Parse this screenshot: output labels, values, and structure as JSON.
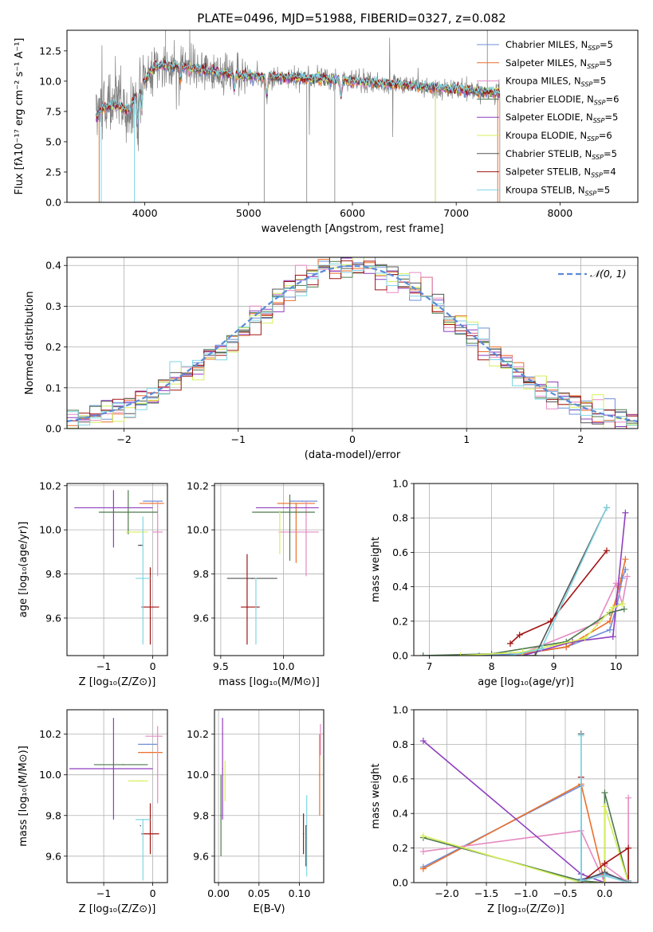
{
  "colors": {
    "chabrier_miles": "#6f8fd8",
    "salpeter_miles": "#ec6f2a",
    "kroupa_miles": "#e58ac1",
    "chabrier_elodie": "#4d7a4d",
    "salpeter_elodie": "#8f3fbf",
    "kroupa_elodie": "#d7ef5a",
    "chabrier_stelib": "#555555",
    "salpeter_stelib": "#a31414",
    "kroupa_stelib": "#7fd6e3",
    "observed": "#7f7f7f",
    "gaussian": "#5b8ad8"
  },
  "chart_data": [
    {
      "id": "spectrum",
      "type": "line",
      "title": "PLATE=0496, MJD=51988, FIBERID=0327, z=0.082",
      "xlabel": "wavelength [Angstrom, rest frame]",
      "ylabel": "Flux [fλ10⁻¹⁷ erg cm⁻² s⁻¹ A⁻¹]",
      "xlim": [
        3250,
        8750
      ],
      "ylim": [
        0,
        14.2
      ],
      "xticks": [
        4000,
        5000,
        6000,
        7000,
        8000
      ],
      "yticks": [
        0.0,
        2.5,
        5.0,
        7.5,
        10.0,
        12.5
      ],
      "grid": false,
      "legend_position": "top-right",
      "observed_range": [
        3530,
        7420
      ],
      "continuum_anchors": {
        "x": [
          3530,
          3600,
          3700,
          3850,
          3950,
          4100,
          4300,
          4500,
          4800,
          5000,
          5300,
          5600,
          6000,
          6300,
          6600,
          7000,
          7200,
          7420
        ],
        "y": [
          7.0,
          7.8,
          8.0,
          7.6,
          9.6,
          11.2,
          11.3,
          11.0,
          10.6,
          10.4,
          10.3,
          10.2,
          10.0,
          9.8,
          9.6,
          9.3,
          9.2,
          9.0
        ]
      },
      "absorption_lines": [
        {
          "x": 3933,
          "depth": 2.8
        },
        {
          "x": 3968,
          "depth": 2.2
        },
        {
          "x": 4340,
          "depth": 1.0
        },
        {
          "x": 4861,
          "depth": 1.2
        },
        {
          "x": 5175,
          "depth": 1.5
        },
        {
          "x": 5890,
          "depth": 1.2
        }
      ],
      "legend": [
        {
          "label": "Chabrier MILES, N",
          "sub": "SSP",
          "tail": "=5",
          "color": "chabrier_miles"
        },
        {
          "label": "Salpeter MILES, N",
          "sub": "SSP",
          "tail": "=5",
          "color": "salpeter_miles"
        },
        {
          "label": "Kroupa MILES, N",
          "sub": "SSP",
          "tail": "=5",
          "color": "kroupa_miles"
        },
        {
          "label": "Chabrier ELODIE, N",
          "sub": "SSP",
          "tail": "=6",
          "color": "chabrier_elodie"
        },
        {
          "label": "Salpeter ELODIE, N",
          "sub": "SSP",
          "tail": "=5",
          "color": "salpeter_elodie"
        },
        {
          "label": "Kroupa ELODIE, N",
          "sub": "SSP",
          "tail": "=6",
          "color": "kroupa_elodie"
        },
        {
          "label": "Chabrier STELIB, N",
          "sub": "SSP",
          "tail": "=5",
          "color": "chabrier_stelib"
        },
        {
          "label": "Salpeter STELIB, N",
          "sub": "SSP",
          "tail": "=4",
          "color": "salpeter_stelib"
        },
        {
          "label": "Kroupa STELIB, N",
          "sub": "SSP",
          "tail": "=5",
          "color": "kroupa_stelib"
        }
      ]
    },
    {
      "id": "residuals",
      "type": "line",
      "xlabel": "(data-model)/error",
      "ylabel": "Normed distribution",
      "xlim": [
        -2.5,
        2.5
      ],
      "ylim": [
        0,
        0.42
      ],
      "xticks": [
        -2,
        -1,
        0,
        1,
        2
      ],
      "yticks": [
        0.0,
        0.1,
        0.2,
        0.3,
        0.4
      ],
      "grid": true,
      "bin_width": 0.1,
      "legend": [
        {
          "label": "𝒩(0, 1)",
          "color": "gaussian",
          "style": "dashed"
        }
      ],
      "legend_position": "top-right"
    },
    {
      "id": "z-age",
      "type": "scatter",
      "xlabel": "Z [log₁₀(Z/Z⊙)]",
      "ylabel": "age  [log₁₀(age/yr)]",
      "xlim": [
        -1.75,
        0.3
      ],
      "ylim": [
        9.43,
        10.21
      ],
      "xticks": [
        -1,
        0
      ],
      "yticks": [
        9.6,
        9.8,
        10.0,
        10.2
      ],
      "grid": true,
      "points": [
        {
          "series": "chabrier_miles",
          "x": 0.0,
          "xerr": [
            0.2,
            0.2
          ],
          "y": 10.13,
          "yerr": [
            0.0,
            0.0
          ]
        },
        {
          "series": "salpeter_miles",
          "x": -0.02,
          "xerr": [
            0.25,
            0.25
          ],
          "y": 10.12,
          "yerr": [
            0.0,
            0.0
          ]
        },
        {
          "series": "kroupa_miles",
          "x": 0.1,
          "xerr": [
            0.1,
            0.1
          ],
          "y": 9.99,
          "yerr": [
            0.2,
            0.14
          ]
        },
        {
          "series": "chabrier_elodie",
          "x": -0.5,
          "xerr": [
            0.6,
            0.6
          ],
          "y": 10.08,
          "yerr": [
            0.1,
            0.1
          ]
        },
        {
          "series": "salpeter_elodie",
          "x": -0.8,
          "xerr": [
            0.8,
            0.8
          ],
          "y": 10.1,
          "yerr": [
            0.18,
            0.08
          ]
        },
        {
          "series": "kroupa_elodie",
          "x": -0.3,
          "xerr": [
            0.25,
            0.2
          ],
          "y": 9.99,
          "yerr": [
            0.0,
            0.0
          ]
        },
        {
          "series": "chabrier_stelib",
          "x": -0.25,
          "xerr": [
            0.05,
            0.05
          ],
          "y": 9.93,
          "yerr": [
            0.0,
            0.0
          ]
        },
        {
          "series": "salpeter_stelib",
          "x": -0.05,
          "xerr": [
            0.18,
            0.18
          ],
          "y": 9.65,
          "yerr": [
            0.17,
            0.18
          ]
        },
        {
          "series": "kroupa_stelib",
          "x": -0.2,
          "xerr": [
            0.15,
            0.15
          ],
          "y": 9.78,
          "yerr": [
            0.3,
            0.28
          ]
        }
      ]
    },
    {
      "id": "mass-age",
      "type": "scatter",
      "xlabel": "mass [log₁₀(M/M⊙)]",
      "ylabel": "",
      "xlim": [
        9.45,
        10.32
      ],
      "ylim": [
        9.43,
        10.21
      ],
      "xticks": [
        9.5,
        10.0
      ],
      "yticks": [
        9.6,
        9.8,
        10.0,
        10.2
      ],
      "grid": true,
      "points": [
        {
          "series": "chabrier_miles",
          "x": 10.15,
          "xerr": [
            0.1,
            0.12
          ],
          "y": 10.13,
          "yerr": [
            0.0,
            0.0
          ]
        },
        {
          "series": "salpeter_miles",
          "x": 10.1,
          "xerr": [
            0.15,
            0.15
          ],
          "y": 10.12,
          "yerr": [
            0.27,
            0.0
          ]
        },
        {
          "series": "kroupa_miles",
          "x": 10.18,
          "xerr": [
            0.22,
            0.1
          ],
          "y": 9.99,
          "yerr": [
            0.2,
            0.14
          ]
        },
        {
          "series": "chabrier_elodie",
          "x": 10.05,
          "xerr": [
            0.3,
            0.2
          ],
          "y": 10.08,
          "yerr": [
            0.22,
            0.08
          ]
        },
        {
          "series": "salpeter_elodie",
          "x": 10.03,
          "xerr": [
            0.25,
            0.25
          ],
          "y": 10.1,
          "yerr": [
            0.0,
            0.0
          ]
        },
        {
          "series": "kroupa_elodie",
          "x": 9.97,
          "xerr": [
            0.0,
            0.0
          ],
          "y": 9.99,
          "yerr": [
            0.1,
            0.1
          ]
        },
        {
          "series": "chabrier_stelib",
          "x": 9.75,
          "xerr": [
            0.2,
            0.2
          ],
          "y": 9.78,
          "yerr": [
            0.0,
            0.0
          ]
        },
        {
          "series": "salpeter_stelib",
          "x": 9.71,
          "xerr": [
            0.05,
            0.1
          ],
          "y": 9.65,
          "yerr": [
            0.17,
            0.24
          ]
        },
        {
          "series": "kroupa_stelib",
          "x": 9.78,
          "xerr": [
            0.0,
            0.0
          ],
          "y": 9.78,
          "yerr": [
            0.3,
            0.0
          ]
        }
      ]
    },
    {
      "id": "age-weight",
      "type": "line",
      "xlabel": "age  [log₁₀(age/yr)]",
      "ylabel": "mass weight",
      "xlim": [
        6.75,
        10.35
      ],
      "ylim": [
        0,
        1.0
      ],
      "xticks": [
        7,
        8,
        9,
        10
      ],
      "yticks": [
        0.0,
        0.2,
        0.4,
        0.6,
        0.8,
        1.0
      ],
      "grid": true,
      "series": [
        {
          "name": "chabrier_miles",
          "x": [
            7.8,
            8.5,
            9.2,
            9.9,
            10.02,
            10.1,
            10.15
          ],
          "y": [
            0.0,
            0.01,
            0.05,
            0.15,
            0.3,
            0.45,
            0.5
          ]
        },
        {
          "name": "salpeter_miles",
          "x": [
            8.3,
            9.2,
            9.9,
            10.05,
            10.15
          ],
          "y": [
            0.0,
            0.05,
            0.2,
            0.4,
            0.56
          ]
        },
        {
          "name": "kroupa_miles",
          "x": [
            8.4,
            9.7,
            10.0,
            10.1,
            10.18
          ],
          "y": [
            0.0,
            0.19,
            0.42,
            0.3,
            0.46
          ]
        },
        {
          "name": "chabrier_elodie",
          "x": [
            6.9,
            8.0,
            9.2,
            9.9,
            10.13
          ],
          "y": [
            0.0,
            0.01,
            0.08,
            0.25,
            0.27
          ]
        },
        {
          "name": "salpeter_elodie",
          "x": [
            8.5,
            9.3,
            9.95,
            10.15
          ],
          "y": [
            0.0,
            0.08,
            0.11,
            0.83
          ]
        },
        {
          "name": "kroupa_elodie",
          "x": [
            7.5,
            8.5,
            9.5,
            9.95,
            10.1
          ],
          "y": [
            0.0,
            0.02,
            0.1,
            0.28,
            0.3
          ]
        },
        {
          "name": "chabrier_stelib",
          "x": [
            8.3,
            8.7,
            9.85
          ],
          "y": [
            0.0,
            0.0,
            0.86
          ]
        },
        {
          "name": "salpeter_stelib",
          "x": [
            8.3,
            8.45,
            8.95,
            9.85
          ],
          "y": [
            0.07,
            0.12,
            0.2,
            0.61
          ]
        },
        {
          "name": "kroupa_stelib",
          "x": [
            8.3,
            8.8,
            9.85
          ],
          "y": [
            0.0,
            0.04,
            0.86
          ]
        }
      ]
    },
    {
      "id": "z-mass",
      "type": "scatter",
      "xlabel": "Z [log₁₀(Z/Z⊙)]",
      "ylabel": "mass [log₁₀(M/M⊙)]",
      "xlim": [
        -1.75,
        0.3
      ],
      "ylim": [
        9.47,
        10.32
      ],
      "xticks": [
        -1,
        0
      ],
      "yticks": [
        9.6,
        9.8,
        10.0,
        10.2
      ],
      "grid": true,
      "points": [
        {
          "series": "chabrier_miles",
          "x": -0.1,
          "xerr": [
            0.2,
            0.2
          ],
          "y": 10.15,
          "yerr": [
            0.0,
            0.0
          ]
        },
        {
          "series": "salpeter_miles",
          "x": -0.05,
          "xerr": [
            0.25,
            0.25
          ],
          "y": 10.11,
          "yerr": [
            0.0,
            0.0
          ]
        },
        {
          "series": "kroupa_miles",
          "x": 0.1,
          "xerr": [
            0.25,
            0.1
          ],
          "y": 10.19,
          "yerr": [
            0.33,
            0.05
          ]
        },
        {
          "series": "chabrier_elodie",
          "x": -0.6,
          "xerr": [
            0.6,
            0.5
          ],
          "y": 10.05,
          "yerr": [
            0.0,
            0.0
          ]
        },
        {
          "series": "salpeter_elodie",
          "x": -0.8,
          "xerr": [
            0.9,
            0.8
          ],
          "y": 10.03,
          "yerr": [
            0.25,
            0.25
          ]
        },
        {
          "series": "kroupa_elodie",
          "x": -0.3,
          "xerr": [
            0.2,
            0.2
          ],
          "y": 9.97,
          "yerr": [
            0.0,
            0.0
          ]
        },
        {
          "series": "chabrier_stelib",
          "x": -0.25,
          "xerr": [
            0.0,
            0.0
          ],
          "y": 9.75,
          "yerr": [
            0.0,
            0.0
          ]
        },
        {
          "series": "salpeter_stelib",
          "x": -0.05,
          "xerr": [
            0.18,
            0.18
          ],
          "y": 9.71,
          "yerr": [
            0.1,
            0.15
          ]
        },
        {
          "series": "kroupa_stelib",
          "x": -0.2,
          "xerr": [
            0.15,
            0.15
          ],
          "y": 9.78,
          "yerr": [
            0.3,
            0.0
          ]
        }
      ]
    },
    {
      "id": "ebv-mass",
      "type": "scatter",
      "xlabel": "E(B-V)",
      "ylabel": "",
      "xlim": [
        -0.005,
        0.13
      ],
      "ylim": [
        9.47,
        10.32
      ],
      "xticks": [
        0.0,
        0.05,
        0.1
      ],
      "yticks": [
        9.6,
        9.8,
        10.0,
        10.2
      ],
      "grid": true,
      "points": [
        {
          "series": "salpeter_elodie",
          "x": 0.005,
          "xerr": [
            0.0,
            0.0
          ],
          "y": 10.03,
          "yerr": [
            0.25,
            0.25
          ]
        },
        {
          "series": "chabrier_elodie",
          "x": 0.003,
          "xerr": [
            0.0,
            0.0
          ],
          "y": 9.8,
          "yerr": [
            0.2,
            0.2
          ]
        },
        {
          "series": "kroupa_elodie",
          "x": 0.008,
          "xerr": [
            0.0,
            0.0
          ],
          "y": 9.97,
          "yerr": [
            0.1,
            0.1
          ]
        },
        {
          "series": "salpeter_stelib",
          "x": 0.105,
          "xerr": [
            0.0,
            0.0
          ],
          "y": 9.71,
          "yerr": [
            0.1,
            0.1
          ]
        },
        {
          "series": "kroupa_stelib",
          "x": 0.109,
          "xerr": [
            0.0,
            0.0
          ],
          "y": 9.75,
          "yerr": [
            0.25,
            0.15
          ]
        },
        {
          "series": "chabrier_stelib",
          "x": 0.108,
          "xerr": [
            0.0,
            0.0
          ],
          "y": 9.75,
          "yerr": [
            0.2,
            0.0
          ]
        },
        {
          "series": "salpeter_miles",
          "x": 0.125,
          "xerr": [
            0.0,
            0.0
          ],
          "y": 10.0,
          "yerr": [
            0.2,
            0.2
          ]
        },
        {
          "series": "kroupa_miles",
          "x": 0.126,
          "xerr": [
            0.0,
            0.0
          ],
          "y": 10.1,
          "yerr": [
            0.0,
            0.15
          ]
        }
      ]
    },
    {
      "id": "z-weight",
      "type": "line",
      "xlabel": "Z [log₁₀(Z/Z⊙)]",
      "ylabel": "mass weight",
      "xlim": [
        -2.42,
        0.42
      ],
      "ylim": [
        0,
        1.0
      ],
      "xticks": [
        -2.0,
        -1.5,
        -1.0,
        -0.5,
        0.0
      ],
      "yticks": [
        0.0,
        0.2,
        0.4,
        0.6,
        0.8,
        1.0
      ],
      "grid": true,
      "series": [
        {
          "name": "chabrier_miles",
          "x": [
            -2.3,
            -0.3,
            -0.3,
            0.0,
            0.3
          ],
          "y": [
            0.09,
            0.56,
            0.02,
            0.05,
            0.01
          ]
        },
        {
          "name": "salpeter_miles",
          "x": [
            -2.3,
            -0.3,
            0.0,
            0.3
          ],
          "y": [
            0.08,
            0.57,
            0.0,
            0.0
          ]
        },
        {
          "name": "kroupa_miles",
          "x": [
            -2.3,
            -0.3,
            0.0,
            0.0,
            0.3,
            0.3
          ],
          "y": [
            0.18,
            0.3,
            0.0,
            0.1,
            0.0,
            0.49
          ]
        },
        {
          "name": "chabrier_elodie",
          "x": [
            -2.3,
            -0.3,
            0.0,
            0.0,
            0.3
          ],
          "y": [
            0.26,
            0.01,
            0.0,
            0.52,
            0.0
          ]
        },
        {
          "name": "salpeter_elodie",
          "x": [
            -2.3,
            -0.3,
            0.0,
            0.3
          ],
          "y": [
            0.82,
            0.05,
            0.0,
            0.0
          ]
        },
        {
          "name": "kroupa_elodie",
          "x": [
            -2.3,
            -0.3,
            0.0,
            0.0,
            0.3
          ],
          "y": [
            0.27,
            0.0,
            0.0,
            0.44,
            0.0
          ]
        },
        {
          "name": "chabrier_stelib",
          "x": [
            -0.3,
            -0.3,
            0.0,
            0.3
          ],
          "y": [
            0.86,
            0.01,
            0.06,
            0.0
          ]
        },
        {
          "name": "salpeter_stelib",
          "x": [
            -0.3,
            -0.3,
            0.0,
            0.3,
            0.3
          ],
          "y": [
            0.61,
            0.0,
            0.11,
            0.2,
            0.0
          ]
        },
        {
          "name": "kroupa_stelib",
          "x": [
            -0.3,
            -0.3,
            0.0,
            0.3
          ],
          "y": [
            0.85,
            0.01,
            0.04,
            0.0
          ]
        }
      ]
    }
  ]
}
